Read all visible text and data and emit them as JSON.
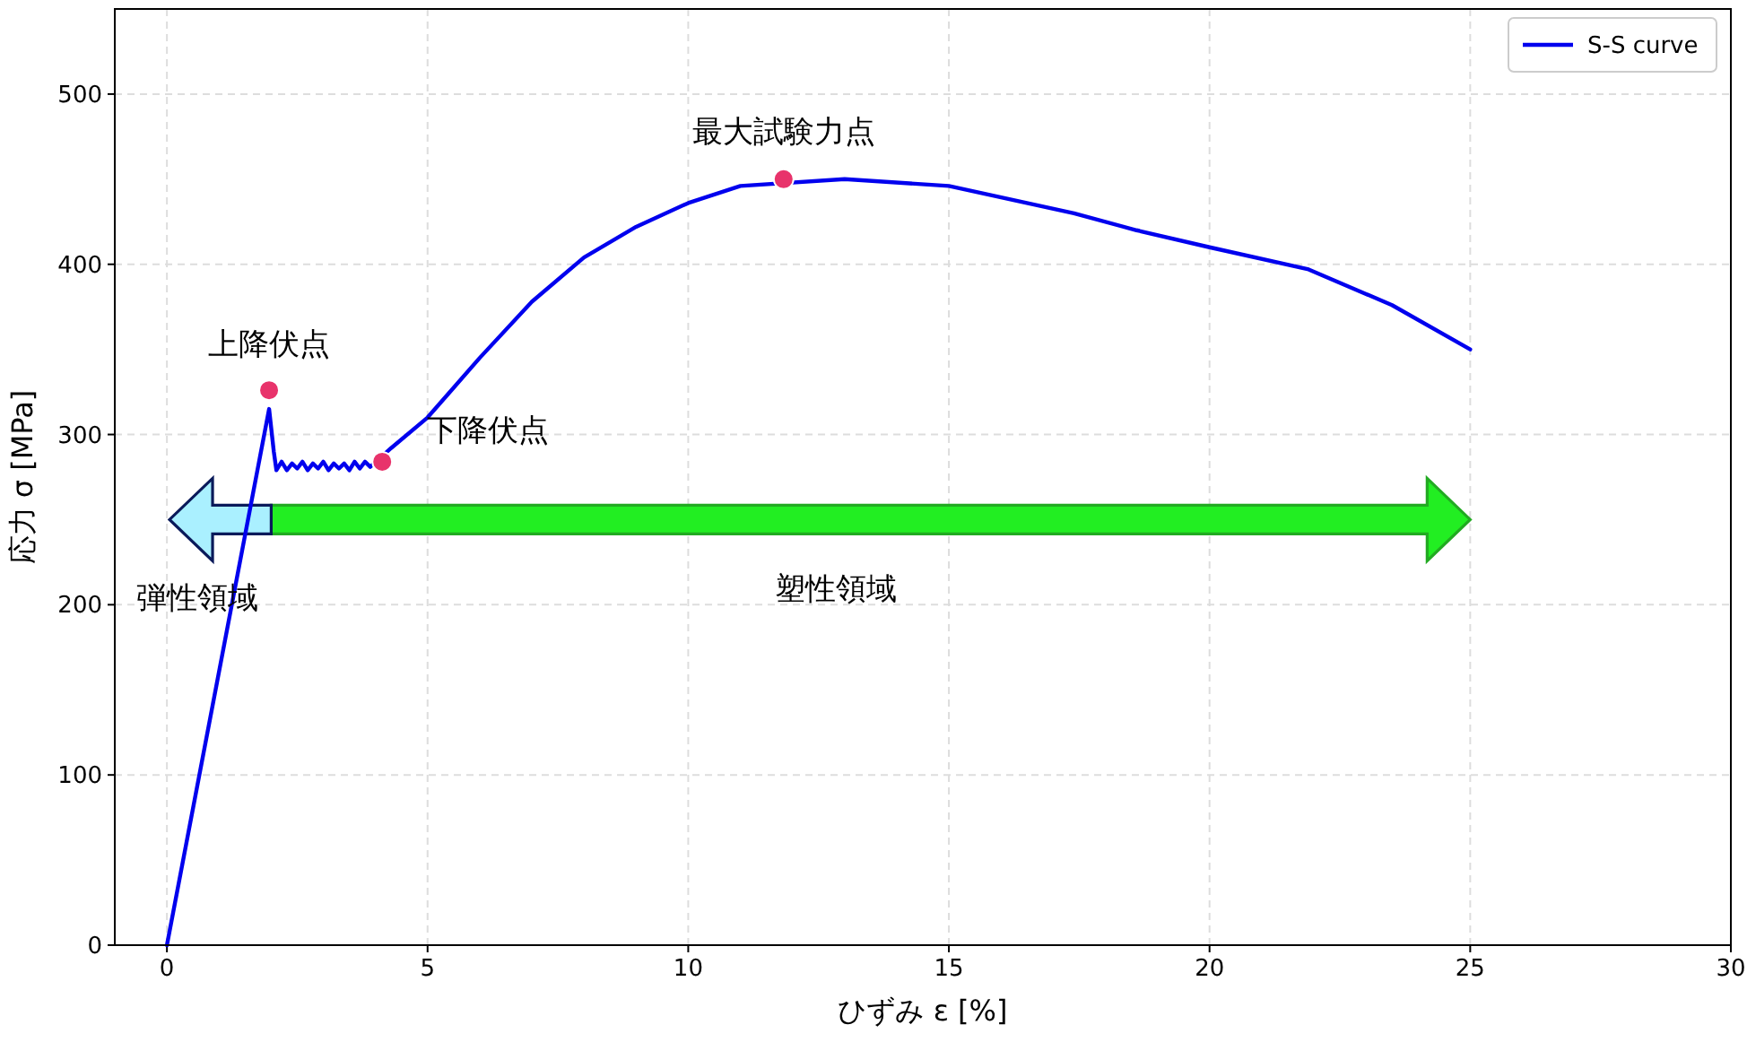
{
  "chart_data": {
    "type": "line",
    "xlabel": "ひずみ ε [%]",
    "ylabel": "応力 σ [MPa]",
    "xlim": [
      -1,
      30
    ],
    "ylim": [
      0,
      550
    ],
    "xticks": [
      0,
      5,
      10,
      15,
      20,
      25,
      30
    ],
    "yticks": [
      0,
      100,
      200,
      300,
      400,
      500
    ],
    "grid": true,
    "legend": "top right",
    "series": [
      {
        "name": "S-S curve",
        "color": "#0000ee",
        "x": [
          0,
          1.96,
          2.05,
          2.1,
          2.2,
          2.3,
          2.4,
          2.5,
          2.6,
          2.7,
          2.8,
          2.9,
          3.0,
          3.1,
          3.2,
          3.3,
          3.4,
          3.5,
          3.6,
          3.7,
          3.8,
          3.9,
          4.3,
          5,
          6,
          7,
          8,
          9,
          10,
          11,
          13,
          15,
          17.4,
          18.6,
          20,
          21.9,
          23.5,
          25
        ],
        "values": [
          0,
          315,
          290,
          279,
          284,
          279,
          283,
          280,
          284,
          279,
          283,
          280,
          284,
          279,
          283,
          280,
          283,
          279,
          284,
          280,
          284,
          281,
          292,
          310,
          345,
          378,
          404,
          422,
          436,
          446,
          450,
          446,
          430,
          420,
          410,
          397,
          376,
          350
        ]
      },
      {
        "type": "scatter",
        "marker": "circle",
        "color": "#e8336b",
        "x": [
          1.96,
          4.13,
          11.83
        ],
        "values": [
          326,
          284,
          450
        ]
      }
    ],
    "annotations": [
      {
        "text": "上降伏点",
        "x": 1.96,
        "y": 326
      },
      {
        "text": "下降伏点",
        "x": 4.13,
        "y": 284
      },
      {
        "text": "最大試験力点",
        "x": 11.83,
        "y": 450
      },
      "弾性領域",
      "塑性領域"
    ]
  }
}
